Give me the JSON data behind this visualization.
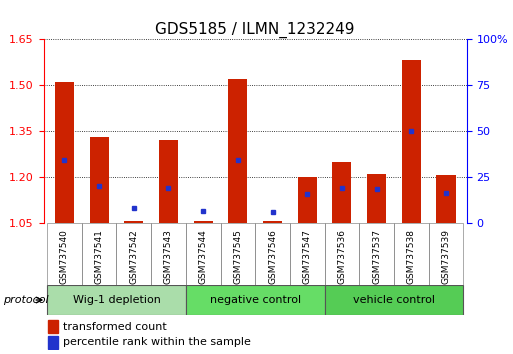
{
  "title": "GDS5185 / ILMN_1232249",
  "samples": [
    "GSM737540",
    "GSM737541",
    "GSM737542",
    "GSM737543",
    "GSM737544",
    "GSM737545",
    "GSM737546",
    "GSM737547",
    "GSM737536",
    "GSM737537",
    "GSM737538",
    "GSM737539"
  ],
  "red_values": [
    1.51,
    1.33,
    1.055,
    1.32,
    1.055,
    1.52,
    1.055,
    1.2,
    1.25,
    1.21,
    1.58,
    1.205
  ],
  "blue_values_pct": [
    34,
    20,
    8,
    19,
    6.5,
    34,
    6,
    16,
    19,
    18.5,
    50,
    16.5
  ],
  "ylim_left": [
    1.05,
    1.65
  ],
  "ylim_right": [
    0,
    100
  ],
  "yticks_left": [
    1.05,
    1.2,
    1.35,
    1.5,
    1.65
  ],
  "yticks_right": [
    0,
    25,
    50,
    75,
    100
  ],
  "ytick_labels_right": [
    "0",
    "25",
    "50",
    "75",
    "100%"
  ],
  "bar_width": 0.55,
  "bar_color": "#cc2200",
  "blue_color": "#2233cc",
  "groups": [
    {
      "label": "Wig-1 depletion",
      "n": 4,
      "color": "#aaddaa"
    },
    {
      "label": "negative control",
      "n": 4,
      "color": "#66dd66"
    },
    {
      "label": "vehicle control",
      "n": 4,
      "color": "#55cc55"
    }
  ],
  "protocol_label": "protocol",
  "legend_red": "transformed count",
  "legend_blue": "percentile rank within the sample",
  "title_fontsize": 11,
  "tick_fontsize": 8,
  "background_color": "#ffffff",
  "plot_bg": "#ffffff",
  "grid_color": "#000000",
  "xlabels_bg": "#cccccc"
}
